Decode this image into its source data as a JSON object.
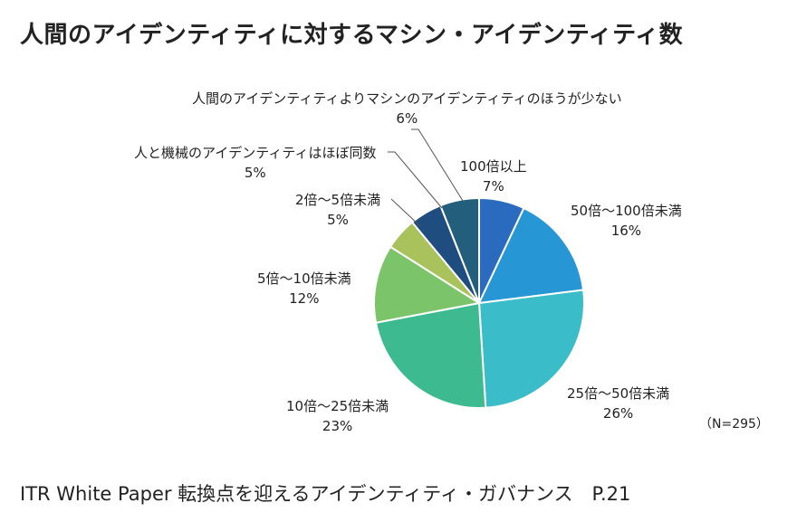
{
  "chart_data": {
    "type": "pie",
    "title": "人間のアイデンティティに対するマシン・アイデンティティ数",
    "note": "（N=295）",
    "slices": [
      {
        "label": "100倍以上",
        "value_label": "7%",
        "value": 7,
        "color": "#2a6bbf"
      },
      {
        "label": "50倍～100倍未満",
        "value_label": "16%",
        "value": 16,
        "color": "#2796d4"
      },
      {
        "label": "25倍～50倍未満",
        "value_label": "26%",
        "value": 26,
        "color": "#3bbcc9"
      },
      {
        "label": "10倍～25倍未満",
        "value_label": "23%",
        "value": 23,
        "color": "#3dba8f"
      },
      {
        "label": "5倍～10倍未満",
        "value_label": "12%",
        "value": 12,
        "color": "#7cc46a"
      },
      {
        "label": "2倍～5倍未満",
        "value_label": "5%",
        "value": 5,
        "color": "#a9c25b"
      },
      {
        "label": "人と機械のアイデンティティはほぼ同数",
        "value_label": "5%",
        "value": 5,
        "color": "#1f4d80"
      },
      {
        "label": "人間のアイデンティティよりマシンのアイデンティティのほうが少ない",
        "value_label": "6%",
        "value": 6,
        "color": "#235f7c"
      }
    ]
  },
  "footer": "ITR White Paper 転換点を迎えるアイデンティティ・ガバナンス　P.21"
}
